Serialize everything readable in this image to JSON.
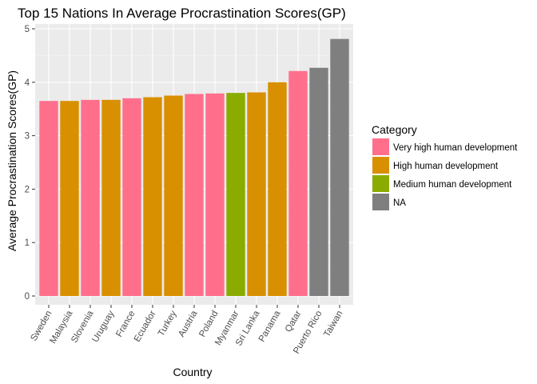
{
  "chart_data": {
    "type": "bar",
    "title": "Top 15 Nations In Average Procrastination Scores(GP)",
    "xlabel": "Country",
    "ylabel": "Average Procrastination Scores(GP)",
    "ylim": [
      0,
      5
    ],
    "yticks": [
      "0",
      "1",
      "2",
      "3",
      "4",
      "5"
    ],
    "grid": true,
    "legend_position": "right",
    "categories": [
      "Sweden",
      "Malaysia",
      "Slovenia",
      "Uruguay",
      "France",
      "Ecuador",
      "Turkey",
      "Austria",
      "Poland",
      "Myanmar",
      "Sri Lanka",
      "Panama",
      "Qatar",
      "Puerto Rico",
      "Taiwan"
    ],
    "values": [
      3.65,
      3.65,
      3.67,
      3.67,
      3.7,
      3.72,
      3.75,
      3.78,
      3.79,
      3.8,
      3.81,
      4.0,
      4.21,
      4.27,
      4.81
    ],
    "groups": [
      "Very high human development",
      "High human development",
      "Very high human development",
      "High human development",
      "Very high human development",
      "High human development",
      "High human development",
      "Very high human development",
      "Very high human development",
      "Medium human development",
      "High human development",
      "High human development",
      "Very high human development",
      "NA",
      "NA"
    ],
    "legend": {
      "title": "Category",
      "entries": [
        {
          "label": "Very high human development",
          "color": "#ff6f8c"
        },
        {
          "label": "High human development",
          "color": "#d89000"
        },
        {
          "label": "Medium human development",
          "color": "#8aab00"
        },
        {
          "label": "NA",
          "color": "#7f7f7f"
        }
      ]
    },
    "colors": {
      "panel": "#ebebeb",
      "grid_major": "#ffffff",
      "grid_minor": "#f3f3f3"
    }
  }
}
